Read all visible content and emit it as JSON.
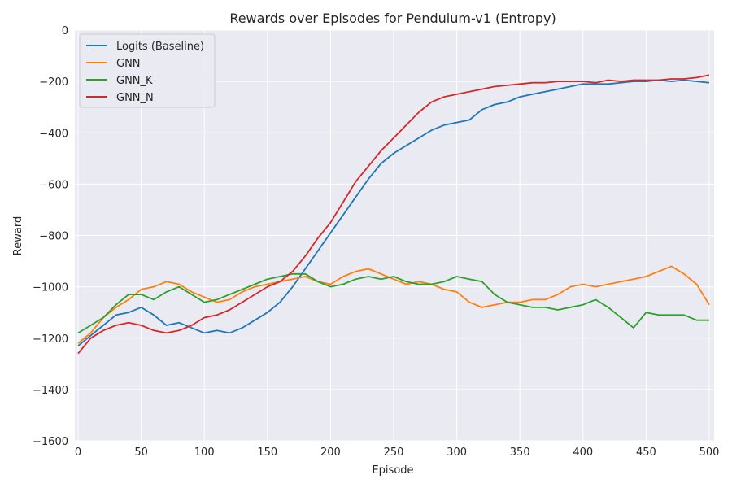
{
  "chart_data": {
    "type": "line",
    "title": "Rewards over Episodes for Pendulum-v1 (Entropy)",
    "xlabel": "Episode",
    "ylabel": "Reward",
    "xlim": [
      0,
      500
    ],
    "ylim": [
      -1600,
      0
    ],
    "xticks": [
      0,
      50,
      100,
      150,
      200,
      250,
      300,
      350,
      400,
      450,
      500
    ],
    "yticks": [
      -1600,
      -1400,
      -1200,
      -1000,
      -800,
      -600,
      -400,
      -200,
      0
    ],
    "grid": true,
    "legend_position": "top-left",
    "x": [
      0,
      10,
      20,
      30,
      40,
      50,
      60,
      70,
      80,
      90,
      100,
      110,
      120,
      130,
      140,
      150,
      160,
      170,
      180,
      190,
      200,
      210,
      220,
      230,
      240,
      250,
      260,
      270,
      280,
      290,
      300,
      310,
      320,
      330,
      340,
      350,
      360,
      370,
      380,
      390,
      400,
      410,
      420,
      430,
      440,
      450,
      460,
      470,
      480,
      490,
      500
    ],
    "series": [
      {
        "name": "Logits (Baseline)",
        "color": "#1f77b4",
        "values": [
          -1230,
          -1190,
          -1150,
          -1110,
          -1100,
          -1080,
          -1110,
          -1150,
          -1140,
          -1160,
          -1180,
          -1170,
          -1180,
          -1160,
          -1130,
          -1100,
          -1060,
          -1000,
          -930,
          -860,
          -790,
          -720,
          -650,
          -580,
          -520,
          -480,
          -450,
          -420,
          -390,
          -370,
          -360,
          -350,
          -310,
          -290,
          -280,
          -260,
          -250,
          -240,
          -230,
          -220,
          -210,
          -210,
          -210,
          -205,
          -200,
          -200,
          -195,
          -200,
          -195,
          -200,
          -205
        ]
      },
      {
        "name": "GNN",
        "color": "#ff7f0e",
        "values": [
          -1220,
          -1180,
          -1120,
          -1080,
          -1050,
          -1010,
          -1000,
          -980,
          -990,
          -1020,
          -1040,
          -1060,
          -1050,
          -1020,
          -1000,
          -990,
          -980,
          -970,
          -960,
          -980,
          -990,
          -960,
          -940,
          -930,
          -950,
          -970,
          -990,
          -980,
          -990,
          -1010,
          -1020,
          -1060,
          -1080,
          -1070,
          -1060,
          -1060,
          -1050,
          -1050,
          -1030,
          -1000,
          -990,
          -1000,
          -990,
          -980,
          -970,
          -960,
          -940,
          -920,
          -950,
          -990,
          -1070
        ]
      },
      {
        "name": "GNN_K",
        "color": "#2ca02c",
        "values": [
          -1180,
          -1150,
          -1120,
          -1070,
          -1030,
          -1030,
          -1050,
          -1020,
          -1000,
          -1030,
          -1060,
          -1050,
          -1030,
          -1010,
          -990,
          -970,
          -960,
          -950,
          -950,
          -980,
          -1000,
          -990,
          -970,
          -960,
          -970,
          -960,
          -980,
          -990,
          -990,
          -980,
          -960,
          -970,
          -980,
          -1030,
          -1060,
          -1070,
          -1080,
          -1080,
          -1090,
          -1080,
          -1070,
          -1050,
          -1080,
          -1120,
          -1160,
          -1100,
          -1110,
          -1110,
          -1110,
          -1130,
          -1130
        ]
      },
      {
        "name": "GNN_N",
        "color": "#d62728",
        "values": [
          -1260,
          -1200,
          -1170,
          -1150,
          -1140,
          -1150,
          -1170,
          -1180,
          -1170,
          -1150,
          -1120,
          -1110,
          -1090,
          -1060,
          -1030,
          -1000,
          -980,
          -940,
          -880,
          -810,
          -750,
          -670,
          -590,
          -530,
          -470,
          -420,
          -370,
          -320,
          -280,
          -260,
          -250,
          -240,
          -230,
          -220,
          -215,
          -210,
          -205,
          -205,
          -200,
          -200,
          -200,
          -205,
          -195,
          -200,
          -195,
          -195,
          -195,
          -190,
          -190,
          -185,
          -175
        ]
      }
    ]
  }
}
